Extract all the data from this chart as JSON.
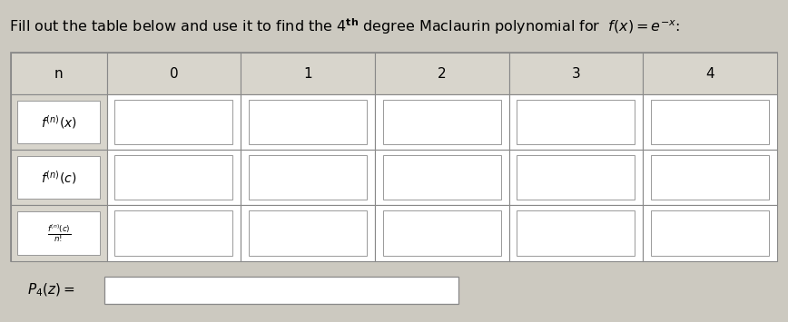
{
  "bg_color": "#ccc9c0",
  "table_bg": "#ffffff",
  "header_cell_bg": "#d8d5cc",
  "col_headers": [
    "n",
    "0",
    "1",
    "2",
    "3",
    "4"
  ],
  "row_labels": [
    "$f^{(n)}(x)$",
    "$f^{(n)}(c)$",
    "$\\frac{f^{(n)}(c)}{n!}$"
  ],
  "p4_label": "$P_4(z) =$",
  "title_fontsize": 11.5,
  "header_fontsize": 11,
  "label_fontsize": 10
}
